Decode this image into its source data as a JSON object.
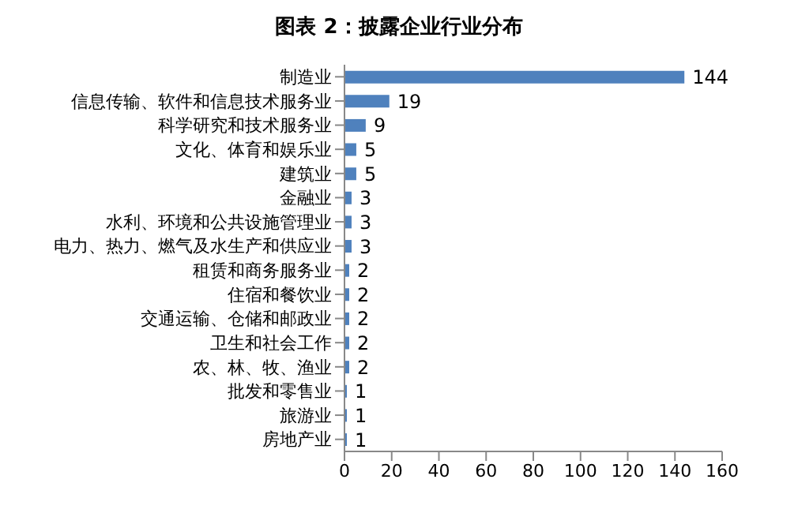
{
  "chart_data": {
    "type": "bar",
    "orientation": "horizontal",
    "title": "图表 2：披露企业行业分布",
    "categories": [
      "制造业",
      "信息传输、软件和信息技术服务业",
      "科学研究和技术服务业",
      "文化、体育和娱乐业",
      "建筑业",
      "金融业",
      "水利、环境和公共设施管理业",
      "电力、热力、燃气及水生产和供应业",
      "租赁和商务服务业",
      "住宿和餐饮业",
      "交通运输、仓储和邮政业",
      "卫生和社会工作",
      "农、林、牧、渔业",
      "批发和零售业",
      "旅游业",
      "房地产业"
    ],
    "values": [
      144,
      19,
      9,
      5,
      5,
      3,
      3,
      3,
      2,
      2,
      2,
      2,
      2,
      1,
      1,
      1
    ],
    "color": "#4f81bd",
    "xlim": [
      0,
      160
    ],
    "xticks": [
      0,
      20,
      40,
      60,
      80,
      100,
      120,
      140,
      160
    ],
    "data_labels": true
  }
}
